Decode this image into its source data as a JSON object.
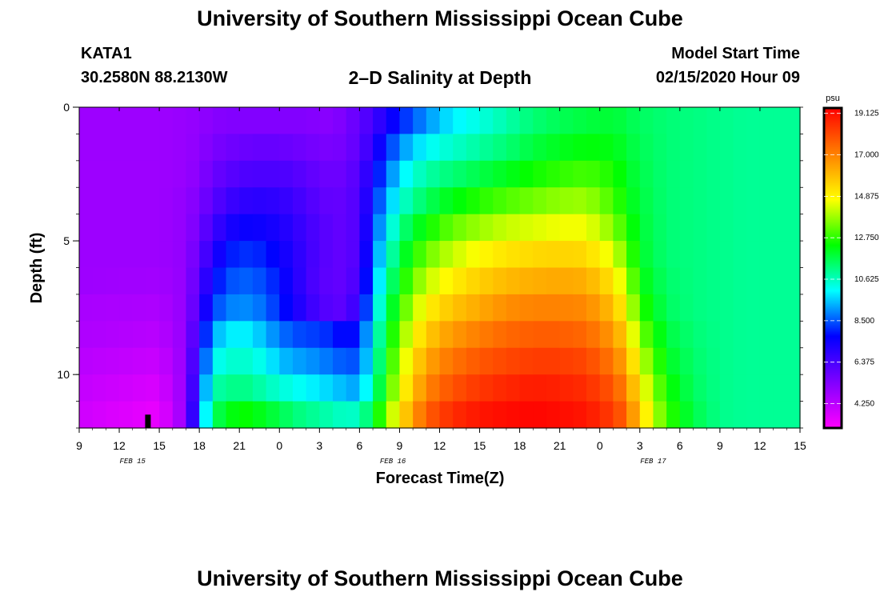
{
  "header": {
    "title": "University of Southern Mississippi Ocean Cube",
    "station_id": "KATA1",
    "coords": "30.2580N 88.2130W",
    "plot_title": "2–D Salinity at Depth",
    "model_start_label": "Model Start Time",
    "model_start_value": "02/15/2020 Hour 09"
  },
  "footer": {
    "title": "University of Southern Mississippi Ocean Cube"
  },
  "chart_data": {
    "type": "heatmap",
    "title": "2–D Salinity at Depth",
    "xlabel": "Forecast Time(Z)",
    "ylabel": "Depth (ft)",
    "x_tick_labels": [
      "9",
      "12",
      "15",
      "18",
      "21",
      "0",
      "3",
      "6",
      "9",
      "12",
      "15",
      "18",
      "21",
      "0",
      "3",
      "6",
      "9",
      "12",
      "15"
    ],
    "x_hours_start": 0,
    "x_hours_end": 54,
    "date_labels": [
      {
        "text": "FEB 15",
        "hour": 4
      },
      {
        "text": "FEB 16",
        "hour": 23.5
      },
      {
        "text": "FEB 17",
        "hour": 43
      }
    ],
    "y_tick_labels": [
      "0",
      "5",
      "10"
    ],
    "y_tick_values": [
      0,
      5,
      10
    ],
    "ylim": [
      0,
      12
    ],
    "colorbar": {
      "unit": "psu",
      "labels": [
        "19.125",
        "17.000",
        "14.875",
        "12.750",
        "10.625",
        "8.500",
        "6.375",
        "4.250"
      ],
      "values": [
        19.125,
        17.0,
        14.875,
        12.75,
        10.625,
        8.5,
        6.375,
        4.25
      ],
      "min": 3.0,
      "max": 19.4
    },
    "marker": {
      "hour": 5,
      "depth_from": 11.5,
      "depth_to": 12.0,
      "color": "#000000"
    },
    "depth_rows": [
      0.5,
      1.5,
      2.5,
      3.5,
      4.5,
      5.5,
      6.5,
      7.5,
      8.5,
      9.5,
      10.5,
      11.5
    ],
    "profile_hours": [
      0,
      6,
      8,
      9,
      10,
      11,
      12,
      13,
      14,
      15,
      16,
      17,
      18,
      19,
      20,
      21,
      22,
      23,
      24,
      25,
      26,
      27,
      28,
      30,
      32,
      34,
      36,
      38,
      40,
      41,
      42,
      44,
      46,
      48,
      50,
      54
    ],
    "salinity_profiles": [
      [
        4.8,
        4.8,
        4.8,
        4.8,
        4.8,
        4.8,
        4.8,
        4.6,
        4.5,
        4.3,
        4.1,
        3.9
      ],
      [
        4.8,
        4.8,
        4.8,
        4.8,
        4.8,
        4.8,
        4.7,
        4.5,
        4.3,
        4.0,
        3.7,
        3.4
      ],
      [
        4.9,
        4.9,
        4.9,
        5.0,
        5.0,
        5.0,
        5.0,
        5.0,
        5.0,
        5.0,
        5.0,
        5.0
      ],
      [
        5.0,
        5.1,
        5.2,
        5.4,
        5.6,
        5.9,
        6.2,
        6.5,
        7.0,
        7.5,
        8.0,
        8.5
      ],
      [
        5.2,
        5.4,
        5.7,
        6.0,
        6.5,
        7.0,
        7.6,
        8.2,
        9.2,
        10.0,
        10.8,
        11.5
      ],
      [
        5.3,
        5.6,
        6.0,
        6.5,
        7.1,
        7.8,
        8.3,
        8.8,
        9.8,
        10.4,
        11.0,
        12.0
      ],
      [
        5.3,
        5.7,
        6.2,
        6.8,
        7.5,
        8.1,
        8.6,
        9.0,
        10.0,
        10.5,
        11.2,
        12.5
      ],
      [
        5.3,
        5.8,
        6.3,
        6.9,
        7.5,
        8.1,
        8.5,
        8.9,
        9.8,
        10.4,
        11.0,
        12.3
      ],
      [
        5.3,
        5.8,
        6.3,
        6.9,
        7.4,
        7.9,
        8.3,
        8.6,
        9.3,
        10.0,
        10.7,
        12.0
      ],
      [
        5.3,
        5.8,
        6.3,
        6.8,
        7.2,
        7.5,
        7.8,
        8.0,
        8.8,
        9.5,
        10.4,
        11.7
      ],
      [
        5.3,
        5.7,
        6.2,
        6.6,
        6.9,
        7.1,
        7.2,
        7.4,
        8.4,
        9.2,
        10.2,
        11.3
      ],
      [
        5.3,
        5.6,
        6.0,
        6.3,
        6.5,
        6.6,
        6.6,
        6.8,
        8.3,
        9.1,
        10.0,
        11.1
      ],
      [
        5.2,
        5.5,
        5.8,
        6.0,
        6.2,
        6.2,
        6.1,
        6.3,
        8.2,
        8.9,
        9.8,
        10.9
      ],
      [
        5.2,
        5.4,
        5.6,
        5.8,
        5.9,
        5.9,
        5.9,
        6.0,
        8.0,
        8.7,
        9.6,
        10.7
      ],
      [
        5.5,
        5.6,
        5.8,
        5.9,
        5.9,
        5.9,
        5.9,
        6.0,
        7.5,
        8.4,
        9.3,
        10.5
      ],
      [
        5.9,
        6.0,
        6.2,
        6.3,
        6.3,
        6.3,
        6.5,
        7.0,
        8.0,
        8.5,
        9.2,
        10.6
      ],
      [
        6.5,
        6.9,
        7.4,
        7.8,
        8.2,
        8.6,
        9.0,
        9.5,
        10.0,
        10.3,
        10.8,
        11.8
      ],
      [
        7.2,
        8.0,
        8.6,
        9.2,
        9.8,
        10.3,
        10.8,
        11.3,
        11.9,
        12.3,
        12.7,
        13.5
      ],
      [
        7.9,
        8.9,
        9.7,
        10.3,
        11.0,
        11.6,
        12.2,
        12.8,
        13.4,
        13.9,
        14.4,
        15.1
      ],
      [
        8.5,
        9.6,
        10.4,
        11.0,
        11.9,
        12.6,
        13.3,
        14.0,
        14.7,
        15.3,
        15.8,
        16.5
      ],
      [
        9.0,
        10.0,
        10.8,
        11.5,
        12.4,
        13.3,
        14.1,
        14.9,
        15.6,
        16.3,
        16.9,
        17.6
      ],
      [
        9.5,
        10.3,
        11.1,
        11.9,
        12.9,
        13.8,
        14.6,
        15.4,
        16.2,
        16.9,
        17.5,
        18.2
      ],
      [
        9.9,
        10.5,
        11.3,
        12.2,
        13.3,
        14.2,
        15.0,
        15.8,
        16.6,
        17.3,
        17.9,
        18.6
      ],
      [
        10.3,
        10.9,
        11.7,
        12.7,
        13.8,
        14.8,
        15.6,
        16.3,
        17.1,
        17.8,
        18.4,
        19.0
      ],
      [
        10.8,
        11.3,
        12.1,
        13.1,
        14.2,
        15.2,
        16.0,
        16.8,
        17.5,
        18.1,
        18.7,
        19.2
      ],
      [
        11.3,
        11.8,
        12.5,
        13.4,
        14.4,
        15.4,
        16.2,
        17.0,
        17.7,
        18.3,
        18.9,
        19.3
      ],
      [
        11.6,
        12.1,
        12.8,
        13.7,
        14.6,
        15.5,
        16.3,
        17.0,
        17.7,
        18.3,
        18.8,
        19.2
      ],
      [
        11.8,
        12.3,
        13.0,
        13.8,
        14.6,
        15.4,
        16.2,
        16.9,
        17.5,
        18.1,
        18.6,
        19.0
      ],
      [
        11.9,
        12.2,
        12.6,
        13.0,
        13.6,
        14.4,
        15.2,
        15.9,
        16.6,
        17.2,
        17.8,
        18.3
      ],
      [
        11.7,
        11.9,
        12.1,
        12.3,
        12.7,
        13.3,
        14.0,
        14.7,
        15.5,
        16.2,
        16.9,
        17.5
      ],
      [
        11.5,
        11.6,
        11.7,
        11.8,
        11.9,
        12.0,
        12.3,
        12.8,
        13.5,
        14.3,
        15.0,
        15.6
      ],
      [
        11.3,
        11.3,
        11.3,
        11.3,
        11.3,
        11.3,
        11.4,
        11.5,
        11.8,
        12.1,
        12.5,
        12.9
      ],
      [
        11.2,
        11.2,
        11.2,
        11.2,
        11.2,
        11.2,
        11.2,
        11.2,
        11.3,
        11.4,
        11.5,
        11.7
      ],
      [
        11.1,
        11.1,
        11.1,
        11.1,
        11.1,
        11.1,
        11.1,
        11.1,
        11.1,
        11.1,
        11.1,
        11.1
      ],
      [
        11.0,
        11.0,
        11.0,
        11.0,
        11.0,
        11.0,
        11.0,
        11.0,
        11.0,
        11.0,
        11.0,
        11.0
      ],
      [
        11.0,
        11.0,
        11.0,
        11.0,
        11.0,
        11.0,
        11.0,
        11.0,
        11.0,
        11.0,
        11.0,
        11.0
      ]
    ],
    "colormap": [
      "#ff00ff",
      "#8000ff",
      "#0000ff",
      "#00ffff",
      "#00ff00",
      "#ffff00",
      "#ff8000",
      "#ff0000"
    ],
    "grid": false,
    "legend": "colorbar-right"
  }
}
